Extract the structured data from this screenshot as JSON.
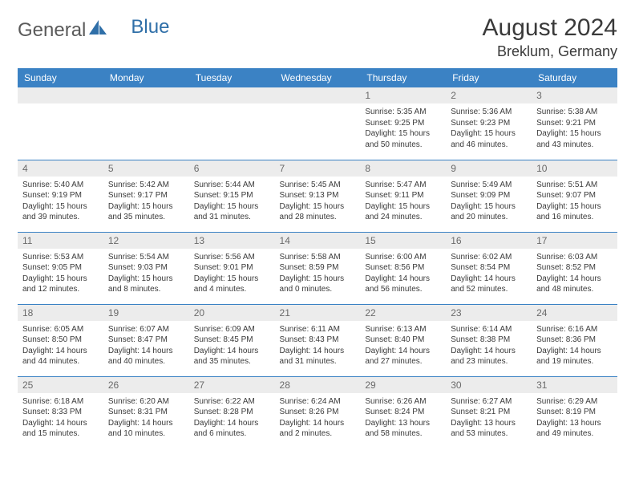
{
  "brand": {
    "part1": "General",
    "part2": "Blue"
  },
  "title": "August 2024",
  "location": "Breklum, Germany",
  "colors": {
    "header_bg": "#3b82c4",
    "header_text": "#ffffff",
    "daynum_bg": "#ececec",
    "text": "#3a3a3a",
    "border": "#3b82c4",
    "logo_gray": "#5a5a5a",
    "logo_blue": "#2f6fa8"
  },
  "day_headers": [
    "Sunday",
    "Monday",
    "Tuesday",
    "Wednesday",
    "Thursday",
    "Friday",
    "Saturday"
  ],
  "weeks": [
    [
      {
        "blank": true
      },
      {
        "blank": true
      },
      {
        "blank": true
      },
      {
        "blank": true
      },
      {
        "n": "1",
        "sr": "5:35 AM",
        "ss": "9:25 PM",
        "dl": "15 hours and 50 minutes."
      },
      {
        "n": "2",
        "sr": "5:36 AM",
        "ss": "9:23 PM",
        "dl": "15 hours and 46 minutes."
      },
      {
        "n": "3",
        "sr": "5:38 AM",
        "ss": "9:21 PM",
        "dl": "15 hours and 43 minutes."
      }
    ],
    [
      {
        "n": "4",
        "sr": "5:40 AM",
        "ss": "9:19 PM",
        "dl": "15 hours and 39 minutes."
      },
      {
        "n": "5",
        "sr": "5:42 AM",
        "ss": "9:17 PM",
        "dl": "15 hours and 35 minutes."
      },
      {
        "n": "6",
        "sr": "5:44 AM",
        "ss": "9:15 PM",
        "dl": "15 hours and 31 minutes."
      },
      {
        "n": "7",
        "sr": "5:45 AM",
        "ss": "9:13 PM",
        "dl": "15 hours and 28 minutes."
      },
      {
        "n": "8",
        "sr": "5:47 AM",
        "ss": "9:11 PM",
        "dl": "15 hours and 24 minutes."
      },
      {
        "n": "9",
        "sr": "5:49 AM",
        "ss": "9:09 PM",
        "dl": "15 hours and 20 minutes."
      },
      {
        "n": "10",
        "sr": "5:51 AM",
        "ss": "9:07 PM",
        "dl": "15 hours and 16 minutes."
      }
    ],
    [
      {
        "n": "11",
        "sr": "5:53 AM",
        "ss": "9:05 PM",
        "dl": "15 hours and 12 minutes."
      },
      {
        "n": "12",
        "sr": "5:54 AM",
        "ss": "9:03 PM",
        "dl": "15 hours and 8 minutes."
      },
      {
        "n": "13",
        "sr": "5:56 AM",
        "ss": "9:01 PM",
        "dl": "15 hours and 4 minutes."
      },
      {
        "n": "14",
        "sr": "5:58 AM",
        "ss": "8:59 PM",
        "dl": "15 hours and 0 minutes."
      },
      {
        "n": "15",
        "sr": "6:00 AM",
        "ss": "8:56 PM",
        "dl": "14 hours and 56 minutes."
      },
      {
        "n": "16",
        "sr": "6:02 AM",
        "ss": "8:54 PM",
        "dl": "14 hours and 52 minutes."
      },
      {
        "n": "17",
        "sr": "6:03 AM",
        "ss": "8:52 PM",
        "dl": "14 hours and 48 minutes."
      }
    ],
    [
      {
        "n": "18",
        "sr": "6:05 AM",
        "ss": "8:50 PM",
        "dl": "14 hours and 44 minutes."
      },
      {
        "n": "19",
        "sr": "6:07 AM",
        "ss": "8:47 PM",
        "dl": "14 hours and 40 minutes."
      },
      {
        "n": "20",
        "sr": "6:09 AM",
        "ss": "8:45 PM",
        "dl": "14 hours and 35 minutes."
      },
      {
        "n": "21",
        "sr": "6:11 AM",
        "ss": "8:43 PM",
        "dl": "14 hours and 31 minutes."
      },
      {
        "n": "22",
        "sr": "6:13 AM",
        "ss": "8:40 PM",
        "dl": "14 hours and 27 minutes."
      },
      {
        "n": "23",
        "sr": "6:14 AM",
        "ss": "8:38 PM",
        "dl": "14 hours and 23 minutes."
      },
      {
        "n": "24",
        "sr": "6:16 AM",
        "ss": "8:36 PM",
        "dl": "14 hours and 19 minutes."
      }
    ],
    [
      {
        "n": "25",
        "sr": "6:18 AM",
        "ss": "8:33 PM",
        "dl": "14 hours and 15 minutes."
      },
      {
        "n": "26",
        "sr": "6:20 AM",
        "ss": "8:31 PM",
        "dl": "14 hours and 10 minutes."
      },
      {
        "n": "27",
        "sr": "6:22 AM",
        "ss": "8:28 PM",
        "dl": "14 hours and 6 minutes."
      },
      {
        "n": "28",
        "sr": "6:24 AM",
        "ss": "8:26 PM",
        "dl": "14 hours and 2 minutes."
      },
      {
        "n": "29",
        "sr": "6:26 AM",
        "ss": "8:24 PM",
        "dl": "13 hours and 58 minutes."
      },
      {
        "n": "30",
        "sr": "6:27 AM",
        "ss": "8:21 PM",
        "dl": "13 hours and 53 minutes."
      },
      {
        "n": "31",
        "sr": "6:29 AM",
        "ss": "8:19 PM",
        "dl": "13 hours and 49 minutes."
      }
    ]
  ],
  "labels": {
    "sunrise": "Sunrise:",
    "sunset": "Sunset:",
    "daylight": "Daylight:"
  }
}
